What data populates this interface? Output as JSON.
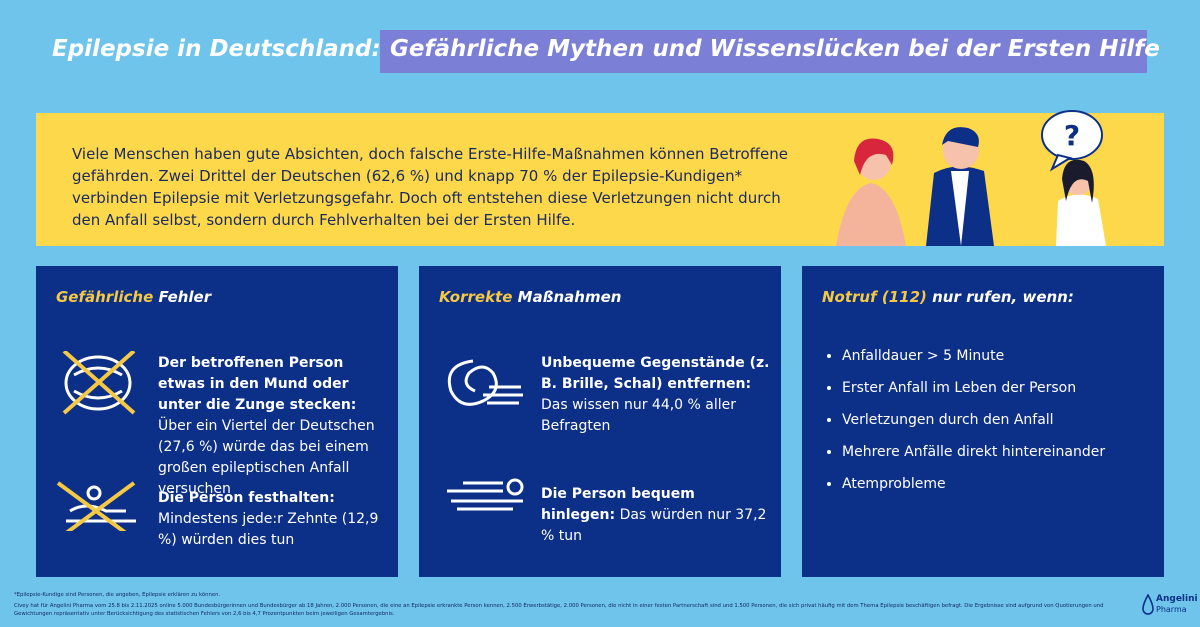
{
  "header": {
    "title": "Epilepsie in Deutschland:",
    "subtitle": "Gefährliche Mythen und Wissenslücken bei der Ersten Hilfe"
  },
  "intro": "Viele Menschen haben gute Absichten, doch falsche Erste-Hilfe-Maßnahmen können Betroffene gefährden. Zwei Drittel der Deutschen (62,6 %) und knapp 70 % der Epilepsie-Kundigen* verbinden Epilepsie mit Verletzungsgefahr. Doch oft entstehen diese Verletzungen nicht durch den Anfall selbst, sondern durch Fehlverhalten bei der Ersten Hilfe.",
  "panels": [
    {
      "highlight": "Gefährliche",
      "heading": "Fehler",
      "items": [
        {
          "bold": "Der betroffenen Person etwas in den Mund oder unter die Zunge stecken:",
          "text": "Über ein Viertel der Deutschen (27,6 %) würde das bei einem großen epileptischen Anfall versuchen"
        },
        {
          "bold": "Die Person festhalten:",
          "text": "Mindestens jede:r Zehnte (12,9 %) würden dies tun"
        }
      ]
    },
    {
      "highlight": "Korrekte",
      "heading": "Maßnahmen",
      "items": [
        {
          "bold": "Unbequeme Gegenstände (z. B. Brille, Schal) entfernen:",
          "text": "Das wissen nur 44,0 % aller Befragten"
        },
        {
          "bold": "Die Person bequem hinlegen:",
          "text": "Das würden nur 37,2 % tun"
        }
      ]
    },
    {
      "highlight": "Notruf (112)",
      "heading": "nur rufen, wenn:",
      "bullets": [
        "Anfalldauer > 5 Minute",
        "Erster Anfall im Leben der Person",
        "Verletzungen durch den Anfall",
        "Mehrere Anfälle direkt hintereinander",
        "Atemprobleme"
      ]
    }
  ],
  "footnotes": [
    "*Epilepsie-Kundige sind Personen, die angeben, Epilepsie erklären zu können.",
    "Civey hat für Angelini Pharma vom 25.8 bis 2.11.2025 online 5.000 Bundesbürgerinnen und Bundesbürger ab 18 Jahren, 2.000 Personen, die eine an Epilepsie erkrankte Person kennen, 2.500 Erwerbstätige, 2.000 Personen, die nicht in einer festen Partnerschaft sind und 1.500 Personen, die sich privat häufig mit dem Thema Epilepsie beschäftigen befragt. Die Ergebnisse sind aufgrund von Quotierungen und Gewichtungen repräsentativ unter Berücksichtigung des statistischen Fehlers von 2,6 bis 4,7 Prozentpunkten beim jeweiligen Gesamtergebnis."
  ],
  "logo": {
    "name": "Angelini",
    "sub": "Pharma"
  }
}
